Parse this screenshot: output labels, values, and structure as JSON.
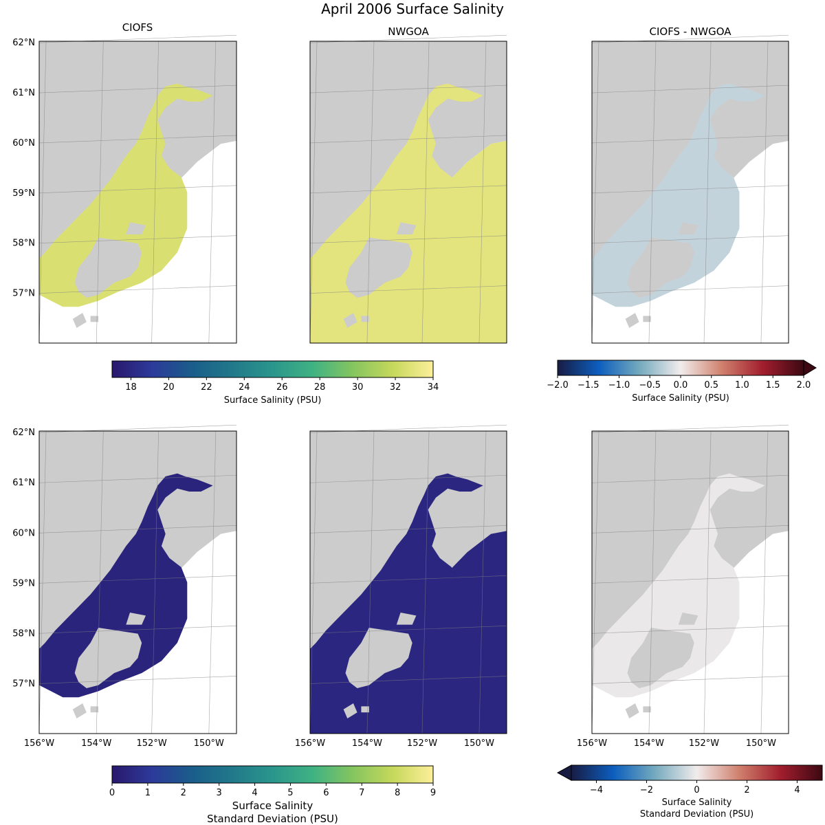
{
  "figure_title": "April 2006 Surface Salinity",
  "colors": {
    "land": "#cccccc",
    "frame": "#000000",
    "grid": "#808080",
    "haline": [
      "#2a186c",
      "#2c3a9a",
      "#1a5d8a",
      "#21798a",
      "#2a968c",
      "#3fb283",
      "#85c55f",
      "#c6d85c",
      "#fdef9a"
    ],
    "balance": [
      "#181c43",
      "#0c5ebe",
      "#75aabe",
      "#f1ecec",
      "#d0816e",
      "#a21e2e",
      "#3c0912"
    ]
  },
  "chart_data": [
    {
      "type": "heatmap",
      "panel": "top-left",
      "title": "CIOFS",
      "field": "salinity",
      "model": "CIOFS",
      "colorbar": "salinity",
      "xlim": [
        -156,
        -149
      ],
      "ylim": [
        56,
        62
      ],
      "xticks": [],
      "yticks": [
        "62°N",
        "61°N",
        "60°N",
        "59°N",
        "58°N",
        "57°N"
      ]
    },
    {
      "type": "heatmap",
      "panel": "top-middle",
      "title": "NWGOA",
      "field": "salinity",
      "model": "NWGOA",
      "colorbar": "salinity",
      "xlim": [
        -156,
        -149
      ],
      "ylim": [
        56,
        62
      ],
      "xticks": [],
      "yticks": []
    },
    {
      "type": "heatmap",
      "panel": "top-right",
      "title": "CIOFS - NWGOA",
      "field": "salinity_difference",
      "model": "DIFF",
      "colorbar": "salinity_difference",
      "xlim": [
        -156,
        -149
      ],
      "ylim": [
        56,
        62
      ],
      "xticks": [],
      "yticks": []
    },
    {
      "type": "heatmap",
      "panel": "bottom-left",
      "title": "",
      "field": "salinity_std",
      "model": "CIOFS",
      "colorbar": "std",
      "xlim": [
        -156,
        -149
      ],
      "ylim": [
        56,
        62
      ],
      "xticks": [
        "156°W",
        "154°W",
        "152°W",
        "150°W"
      ],
      "yticks": [
        "62°N",
        "61°N",
        "60°N",
        "59°N",
        "58°N",
        "57°N"
      ]
    },
    {
      "type": "heatmap",
      "panel": "bottom-middle",
      "title": "",
      "field": "salinity_std",
      "model": "NWGOA",
      "colorbar": "std",
      "xlim": [
        -156,
        -149
      ],
      "ylim": [
        56,
        62
      ],
      "xticks": [
        "156°W",
        "154°W",
        "152°W",
        "150°W"
      ],
      "yticks": []
    },
    {
      "type": "heatmap",
      "panel": "bottom-right",
      "title": "",
      "field": "salinity_std_difference",
      "model": "DIFF",
      "colorbar": "std_difference",
      "xlim": [
        -156,
        -149
      ],
      "ylim": [
        56,
        62
      ],
      "xticks": [
        "156°W",
        "154°W",
        "152°W",
        "150°W"
      ],
      "yticks": []
    }
  ],
  "colorbars": {
    "salinity": {
      "label": "Surface Salinity (PSU)",
      "range": [
        17,
        34
      ],
      "colormap": "haline",
      "extend": "neither",
      "ticks": [
        {
          "v": 18,
          "t": "18"
        },
        {
          "v": 20,
          "t": "20"
        },
        {
          "v": 22,
          "t": "22"
        },
        {
          "v": 24,
          "t": "24"
        },
        {
          "v": 26,
          "t": "26"
        },
        {
          "v": 28,
          "t": "28"
        },
        {
          "v": 30,
          "t": "30"
        },
        {
          "v": 32,
          "t": "32"
        },
        {
          "v": 34,
          "t": "34"
        }
      ]
    },
    "salinity_difference": {
      "label": "Surface Salinity (PSU)",
      "range": [
        -2,
        2
      ],
      "colormap": "balance",
      "extend": "max",
      "ticks": [
        {
          "v": -2,
          "t": "−2.0"
        },
        {
          "v": -1.5,
          "t": "−1.5"
        },
        {
          "v": -1,
          "t": "−1.0"
        },
        {
          "v": -0.5,
          "t": "−0.5"
        },
        {
          "v": 0,
          "t": "0.0"
        },
        {
          "v": 0.5,
          "t": "0.5"
        },
        {
          "v": 1,
          "t": "1.0"
        },
        {
          "v": 1.5,
          "t": "1.5"
        },
        {
          "v": 2,
          "t": "2.0"
        }
      ]
    },
    "std": {
      "label_lines": [
        "Surface Salinity",
        "Standard Deviation (PSU)"
      ],
      "range": [
        0,
        9
      ],
      "colormap": "haline",
      "extend": "neither",
      "ticks": [
        {
          "v": 0,
          "t": "0"
        },
        {
          "v": 1,
          "t": "1"
        },
        {
          "v": 2,
          "t": "2"
        },
        {
          "v": 3,
          "t": "3"
        },
        {
          "v": 4,
          "t": "4"
        },
        {
          "v": 5,
          "t": "5"
        },
        {
          "v": 6,
          "t": "6"
        },
        {
          "v": 7,
          "t": "7"
        },
        {
          "v": 8,
          "t": "8"
        },
        {
          "v": 9,
          "t": "9"
        }
      ]
    },
    "std_difference": {
      "label_lines": [
        "Surface Salinity",
        "Standard Deviation (PSU)"
      ],
      "range": [
        -5,
        5
      ],
      "colormap": "balance",
      "extend": "min",
      "ticks": [
        {
          "v": -4,
          "t": "−4"
        },
        {
          "v": -2,
          "t": "−2"
        },
        {
          "v": 0,
          "t": "0"
        },
        {
          "v": 2,
          "t": "2"
        },
        {
          "v": 4,
          "t": "4"
        }
      ]
    }
  }
}
